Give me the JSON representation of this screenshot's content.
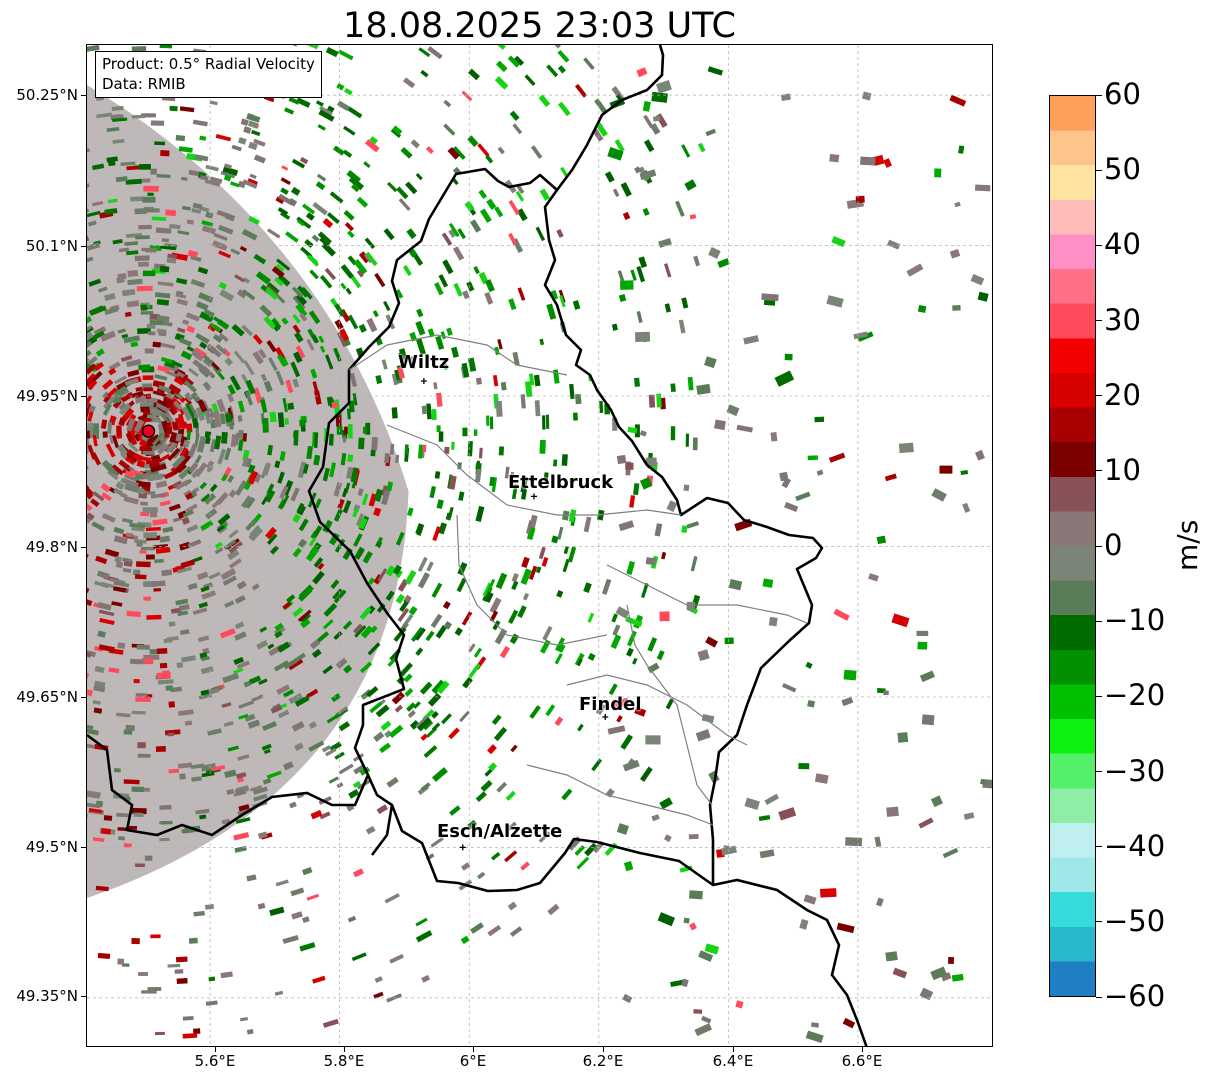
{
  "title": "18.08.2025 23:03 UTC",
  "info": {
    "product_line": "Product: 0.5° Radial Velocity",
    "data_line": "Data: RMIB"
  },
  "cities": [
    {
      "name": "Wiltz",
      "lon": 5.93,
      "lat": 49.965
    },
    {
      "name": "Ettelbruck",
      "lon": 6.1,
      "lat": 49.85
    },
    {
      "name": "Findel",
      "lon": 6.21,
      "lat": 49.63
    },
    {
      "name": "Esch/Alzette",
      "lon": 5.99,
      "lat": 49.5
    }
  ],
  "radar_site": {
    "lon": 5.505,
    "lat": 49.915,
    "color": "#e8001c"
  },
  "lat_ticks": [
    "50.25°N",
    "50.1°N",
    "49.95°N",
    "49.8°N",
    "49.65°N",
    "49.5°N",
    "49.35°N"
  ],
  "lon_ticks": [
    "5.6°E",
    "5.8°E",
    "6°E",
    "6.2°E",
    "6.4°E",
    "6.6°E"
  ],
  "colorbar": {
    "label": "m/s",
    "min": -60,
    "max": 60,
    "tick_labels": [
      "60",
      "50",
      "40",
      "30",
      "20",
      "10",
      "0",
      "−10",
      "−20",
      "−30",
      "−40",
      "−50",
      "−60"
    ],
    "stops": [
      "#1f7fc4",
      "#27b8cc",
      "#36dcdc",
      "#9fe8e8",
      "#bff0ef",
      "#8eeea8",
      "#55f06a",
      "#0ef00e",
      "#00c000",
      "#009000",
      "#006c00",
      "#5a7c58",
      "#7a8577",
      "#8a7878",
      "#885158",
      "#7a0000",
      "#a80000",
      "#d60000",
      "#f50000",
      "#ff4a5c",
      "#ff6f86",
      "#ff8fc4",
      "#ffbcb9",
      "#ffe3a0",
      "#ffc48a",
      "#ffa05a"
    ]
  },
  "border_color": "#000000",
  "canton_line_color": "#808080"
}
